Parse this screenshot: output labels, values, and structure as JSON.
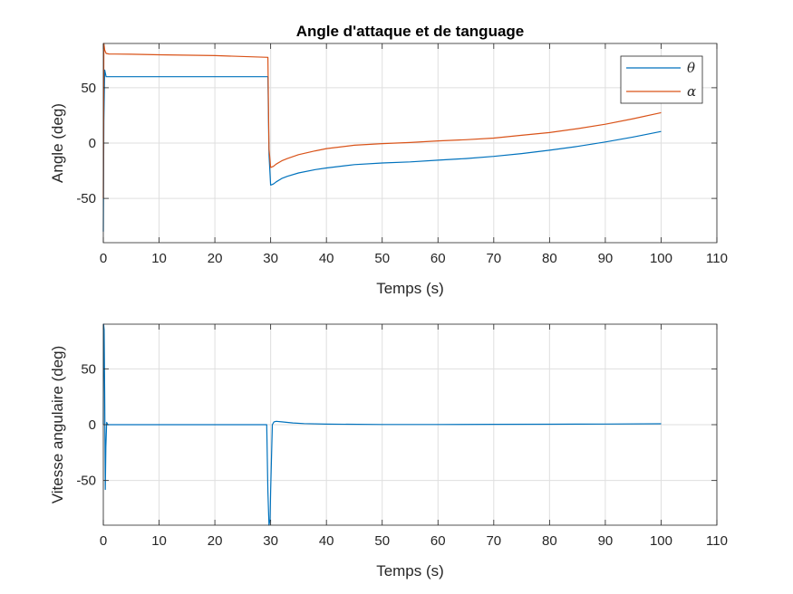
{
  "chart_data": [
    {
      "type": "line",
      "title": "Angle d'attaque et de tanguage",
      "xlabel": "Temps (s)",
      "ylabel": "Angle (deg)",
      "xlim": [
        0,
        110
      ],
      "ylim": [
        -90,
        90
      ],
      "xticks": [
        "0",
        "10",
        "20",
        "30",
        "40",
        "50",
        "60",
        "70",
        "80",
        "90",
        "100",
        "110"
      ],
      "yticks": [
        "-50",
        "0",
        "50"
      ],
      "grid": true,
      "legend_position": "top-right",
      "series": [
        {
          "name": "θ",
          "color": "#0072BD",
          "x": [
            0,
            0.1,
            0.25,
            0.5,
            1,
            5,
            10,
            20,
            29.5,
            29.7,
            30,
            30.5,
            31,
            32,
            33,
            35,
            38,
            40,
            45,
            50,
            55,
            60,
            65,
            70,
            75,
            80,
            85,
            90,
            95,
            100
          ],
          "y": [
            -80,
            20,
            66,
            60,
            60,
            60,
            60,
            60,
            60,
            -10,
            -38,
            -37,
            -35,
            -32,
            -30,
            -27,
            -24,
            -22.5,
            -19.5,
            -18,
            -17,
            -15.5,
            -14,
            -12,
            -9.5,
            -6.5,
            -3,
            1,
            5.5,
            10.5
          ]
        },
        {
          "name": "α",
          "color": "#D95319",
          "x": [
            0,
            0.1,
            0.25,
            0.5,
            1,
            5,
            10,
            20,
            29.5,
            29.7,
            30,
            30.5,
            31,
            32,
            33,
            35,
            38,
            40,
            45,
            50,
            55,
            60,
            65,
            70,
            75,
            80,
            85,
            90,
            95,
            100
          ],
          "y": [
            -50,
            90,
            84,
            81,
            80.5,
            80.3,
            79.8,
            79,
            77.5,
            -5,
            -22,
            -21,
            -19,
            -16,
            -14,
            -10.5,
            -7,
            -5,
            -2,
            -0.5,
            0.5,
            2,
            3,
            4.5,
            7,
            9.5,
            13,
            17,
            22,
            27.5
          ]
        }
      ]
    },
    {
      "type": "line",
      "title": "",
      "xlabel": "Temps (s)",
      "ylabel": "Vitesse angulaire (deg)",
      "xlim": [
        0,
        110
      ],
      "ylim": [
        -90,
        90
      ],
      "xticks": [
        "0",
        "10",
        "20",
        "30",
        "40",
        "50",
        "60",
        "70",
        "80",
        "90",
        "100",
        "110"
      ],
      "yticks": [
        "-50",
        "0",
        "50"
      ],
      "grid": true,
      "series": [
        {
          "color": "#0072BD",
          "x": [
            0,
            0.05,
            0.15,
            0.25,
            0.35,
            0.45,
            0.6,
            0.8,
            1,
            5,
            10,
            20,
            29.3,
            29.5,
            29.7,
            29.9,
            30,
            30.3,
            30.6,
            31,
            32,
            34,
            36,
            40,
            50,
            60,
            70,
            80,
            90,
            100
          ],
          "y": [
            0,
            90,
            85,
            30,
            -58,
            -20,
            2,
            0,
            0,
            0,
            0,
            0,
            0,
            -60,
            -90,
            -85,
            -60,
            0,
            2.5,
            3,
            2.5,
            1.5,
            1,
            0.5,
            0.2,
            0.2,
            0.3,
            0.4,
            0.6,
            0.8
          ]
        }
      ]
    }
  ]
}
